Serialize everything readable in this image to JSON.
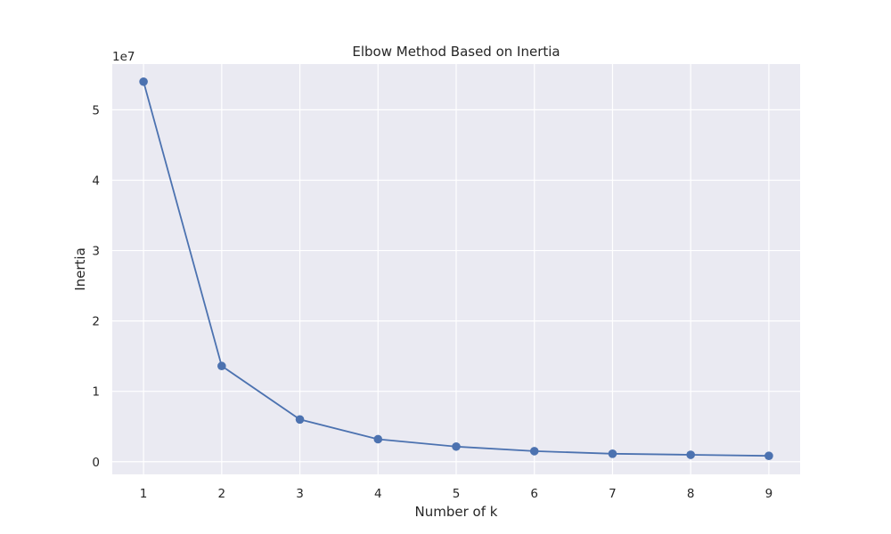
{
  "chart_data": {
    "type": "line",
    "title": "Elbow Method Based on Inertia",
    "xlabel": "Number of k",
    "ylabel": "Inertia",
    "y_offset_label": "1e7",
    "x": [
      1,
      2,
      3,
      4,
      5,
      6,
      7,
      8,
      9
    ],
    "series": [
      {
        "values": [
          54000000,
          13600000,
          6000000,
          3200000,
          2150000,
          1500000,
          1130000,
          980000,
          830000
        ],
        "color": "#4c72b0",
        "marker": "circle"
      }
    ],
    "xlim": [
      0.6,
      9.4
    ],
    "ylim": [
      -1800000,
      56500000
    ],
    "x_ticks": [
      1,
      2,
      3,
      4,
      5,
      6,
      7,
      8,
      9
    ],
    "y_ticks": [
      0,
      10000000,
      20000000,
      30000000,
      40000000,
      50000000
    ],
    "y_tick_labels": [
      "0",
      "1",
      "2",
      "3",
      "4",
      "5"
    ],
    "grid": true,
    "background_color": "#eaeaf2",
    "grid_color": "#ffffff"
  }
}
